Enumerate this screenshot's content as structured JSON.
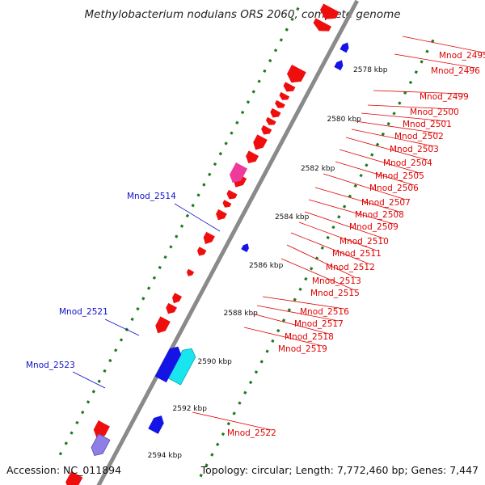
{
  "header": {
    "title": "Methylobacterium nodulans ORS 2060, complete genome"
  },
  "footer": {
    "accession": "Accession: NC_011894",
    "summary": "Topology: circular; Length: 7,772,460 bp; Genes: 7,447"
  },
  "colors": {
    "backbone": "#8a8a8a",
    "tick_dot": "#1e7a1e",
    "forward_gene": "#ef0e0e",
    "reverse_gene": "#1414e6",
    "label_red": "#e00000",
    "label_blue": "#1010cc",
    "highlight_cyan": "#19e5ee",
    "highlight_magenta": "#ee3a9a",
    "highlight_lavender": "#8f7ee6"
  },
  "scale_labels": [
    "2578 kbp",
    "2580 kbp",
    "2582 kbp",
    "2584 kbp",
    "2586 kbp",
    "2588 kbp",
    "2590 kbp",
    "2592 kbp",
    "2594 kbp"
  ],
  "gene_labels_right": [
    "Mnod_2495",
    "Mnod_2496",
    "Mnod_2499",
    "Mnod_2500",
    "Mnod_2501",
    "Mnod_2502",
    "Mnod_2503",
    "Mnod_2504",
    "Mnod_2505",
    "Mnod_2506",
    "Mnod_2507",
    "Mnod_2508",
    "Mnod_2509",
    "Mnod_2510",
    "Mnod_2511",
    "Mnod_2512",
    "Mnod_2513",
    "Mnod_2515",
    "Mnod_2516",
    "Mnod_2517",
    "Mnod_2518",
    "Mnod_2519",
    "Mnod_2522"
  ],
  "gene_labels_left": [
    "Mnod_2514",
    "Mnod_2521",
    "Mnod_2523"
  ]
}
